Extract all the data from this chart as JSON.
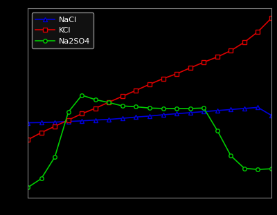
{
  "NaCl": {
    "color": "#0000dd",
    "marker": "^",
    "label": "NaCl",
    "x": [
      0,
      10,
      20,
      30,
      40,
      50,
      60,
      70,
      80,
      90,
      100,
      110,
      120,
      130,
      140,
      150,
      160,
      170,
      180
    ],
    "y": [
      35.7,
      35.8,
      36.0,
      36.3,
      36.6,
      37.0,
      37.3,
      37.8,
      38.4,
      38.9,
      39.5,
      40.0,
      40.5,
      41.0,
      41.5,
      42.0,
      42.5,
      43.0,
      39.2
    ]
  },
  "KCl": {
    "color": "#dd0000",
    "marker": "s",
    "label": "KCl",
    "x": [
      0,
      10,
      20,
      30,
      40,
      50,
      60,
      70,
      80,
      90,
      100,
      110,
      120,
      130,
      140,
      150,
      160,
      170,
      180
    ],
    "y": [
      27.6,
      31.0,
      34.0,
      37.0,
      40.0,
      42.6,
      45.5,
      48.3,
      51.1,
      54.0,
      56.7,
      59.0,
      61.8,
      64.5,
      67.0,
      70.0,
      74.0,
      79.0,
      85.5
    ]
  },
  "Na2SO4": {
    "color": "#00cc00",
    "marker": "o",
    "label": "Na2SO4",
    "x": [
      0,
      10,
      20,
      30,
      40,
      50,
      60,
      70,
      80,
      90,
      100,
      110,
      120,
      130,
      140,
      150,
      160,
      170,
      180
    ],
    "y": [
      4.9,
      9.1,
      19.4,
      40.8,
      48.8,
      46.7,
      45.3,
      43.7,
      43.3,
      42.7,
      42.5,
      42.5,
      42.5,
      42.7,
      32.0,
      20.0,
      14.0,
      13.5,
      13.8
    ]
  },
  "xlim": [
    0,
    180
  ],
  "ylim": [
    0,
    90
  ],
  "facecolor": "#000000",
  "axfacecolor": "#000000",
  "spine_color": "#888888",
  "legend_facecolor": "#111111",
  "legend_edgecolor": "#888888",
  "legend_label_color": "#ffffff"
}
